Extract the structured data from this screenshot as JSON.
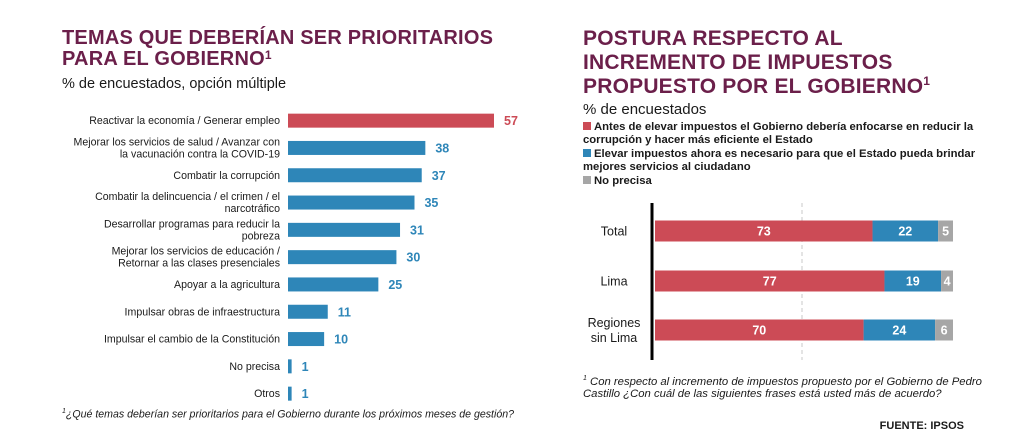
{
  "colors": {
    "title": "#6b1f4a",
    "red": "#cc4b56",
    "blue": "#2e86b8",
    "gray": "#a6a6a6"
  },
  "left": {
    "title_line1": "TEMAS QUE DEBERÍAN SER PRIORITARIOS",
    "title_line2": "PARA EL GOBIERNO",
    "title_sup": "1",
    "subtitle": "% de encuestados, opción múltiple",
    "footnote_sup": "1",
    "footnote": "¿Qué temas deberían ser prioritarios para el Gobierno durante los próximos meses de gestión?"
  },
  "right": {
    "title_line1": "POSTURA RESPECTO AL",
    "title_line2": "INCREMENTO DE IMPUESTOS",
    "title_line3": "PROPUESTO POR EL GOBIERNO",
    "title_sup": "1",
    "subtitle": "% de encuestados",
    "legend": [
      {
        "text": "Antes de elevar impuestos el Gobierno debería enfocarse en reducir la corrupción y hacer más eficiente el Estado",
        "color": "#cc4b56"
      },
      {
        "text": "Elevar impuestos ahora es necesario para que el Estado pueda brindar mejores servicios al ciudadano",
        "color": "#2e86b8"
      },
      {
        "text": "No precisa",
        "color": "#a6a6a6"
      }
    ],
    "footnote_sup": "1",
    "footnote": "Con respecto al incremento de impuestos propuesto por el Gobierno de Pedro Castillo ¿Con cuál de las siguientes frases está usted más de acuerdo?",
    "source": "FUENTE: IPSOS"
  },
  "chart_data": [
    {
      "type": "bar",
      "orientation": "horizontal",
      "categories": [
        "Reactivar la economía / Generar empleo",
        "Mejorar los servicios de salud / Avanzar con la vacunación contra la COVID-19",
        "Combatir la corrupción",
        "Combatir la delincuencia / el crimen / el narcotráfico",
        "Desarrollar programas para reducir la pobreza",
        "Mejorar los servicios de educación / Retornar a las clases presenciales",
        "Apoyar a la agricultura",
        "Impulsar obras de infraestructura",
        "Impulsar el cambio de la Constitución",
        "No precisa",
        "Otros"
      ],
      "values": [
        57,
        38,
        37,
        35,
        31,
        30,
        25,
        11,
        10,
        1,
        1
      ],
      "bar_colors": [
        "#cc4b56",
        "#2e86b8",
        "#2e86b8",
        "#2e86b8",
        "#2e86b8",
        "#2e86b8",
        "#2e86b8",
        "#2e86b8",
        "#2e86b8",
        "#2e86b8",
        "#2e86b8"
      ],
      "xlim": [
        0,
        57
      ]
    },
    {
      "type": "bar",
      "orientation": "horizontal",
      "stacked": true,
      "categories": [
        "Total",
        "Lima",
        "Regiones sin Lima"
      ],
      "series": [
        {
          "values": [
            73,
            77,
            70
          ],
          "color": "#cc4b56"
        },
        {
          "values": [
            22,
            19,
            24
          ],
          "color": "#2e86b8"
        },
        {
          "values": [
            5,
            4,
            6
          ],
          "color": "#a6a6a6"
        }
      ],
      "xlim": [
        0,
        100
      ]
    }
  ]
}
